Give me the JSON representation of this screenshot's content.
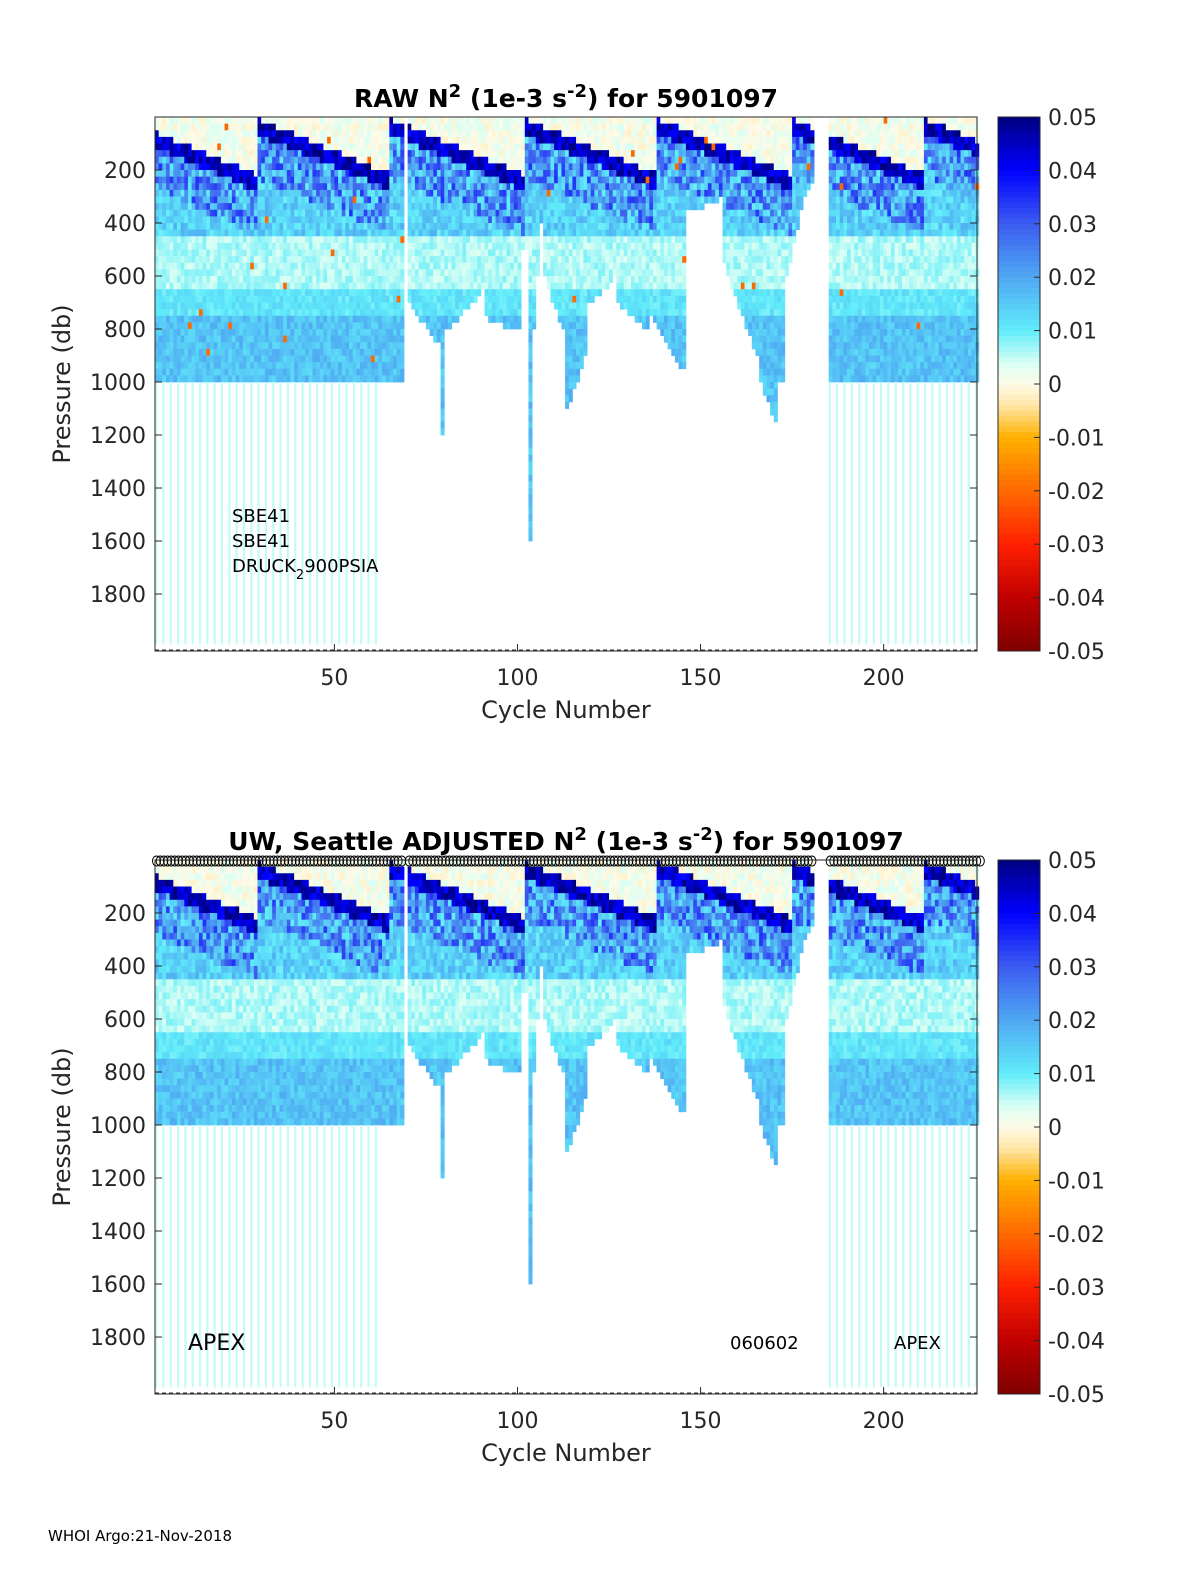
{
  "chart_data": [
    {
      "type": "heatmap",
      "title_parts": [
        "RAW N",
        "2",
        " (1e-3 s",
        "-2",
        ") for 5901097"
      ],
      "xlabel": "Cycle Number",
      "ylabel": "Pressure (db)",
      "xlim": [
        1,
        225.5
      ],
      "ylim": [
        0,
        2015
      ],
      "y_reversed": true,
      "xticks": [
        50,
        100,
        150,
        200
      ],
      "yticks": [
        200,
        400,
        600,
        800,
        1000,
        1200,
        1400,
        1600,
        1800
      ],
      "annotations": [
        "SBE41",
        "SBE41",
        "DRUCK",
        "2",
        "900PSIA"
      ],
      "show_cycle_markers": false
    },
    {
      "type": "heatmap",
      "title_parts": [
        "UW, Seattle  ADJUSTED N",
        "2",
        " (1e-3 s",
        "-2",
        ") for 5901097"
      ],
      "xlabel": "Cycle Number",
      "ylabel": "Pressure (db)",
      "xlim": [
        1,
        225.5
      ],
      "ylim": [
        0,
        2015
      ],
      "y_reversed": true,
      "xticks": [
        50,
        100,
        150,
        200
      ],
      "yticks": [
        200,
        400,
        600,
        800,
        1000,
        1200,
        1400,
        1600,
        1800
      ],
      "annotations": [
        "APEX",
        "060602",
        "APEX"
      ],
      "show_cycle_markers": true
    }
  ],
  "shared": {
    "cycles": [
      1,
      225
    ],
    "missing_cycles": [
      69,
      181,
      182,
      183,
      184
    ],
    "max_pressure_segments": [
      [
        1,
        62,
        1000,
        1000
      ],
      [
        63,
        66,
        1000,
        1000
      ],
      [
        67,
        68,
        1000,
        1000
      ],
      [
        70,
        78,
        700,
        850
      ],
      [
        79,
        79,
        1200,
        1200
      ],
      [
        80,
        90,
        800,
        650
      ],
      [
        91,
        100,
        750,
        800
      ],
      [
        101,
        102,
        500,
        500
      ],
      [
        103,
        103,
        1600,
        1600
      ],
      [
        104,
        106,
        800,
        400
      ],
      [
        107,
        112,
        600,
        800
      ],
      [
        113,
        118,
        1100,
        900
      ],
      [
        119,
        126,
        700,
        600
      ],
      [
        127,
        135,
        700,
        800
      ],
      [
        136,
        145,
        750,
        950
      ],
      [
        146,
        155,
        350,
        300
      ],
      [
        156,
        165,
        550,
        900
      ],
      [
        166,
        170,
        1000,
        1150
      ],
      [
        171,
        172,
        1000,
        1000
      ],
      [
        173,
        177,
        600,
        350
      ],
      [
        178,
        180,
        300,
        250
      ],
      [
        185,
        225,
        1000,
        1000
      ]
    ],
    "deep_profile_cycles": [
      [
        1,
        62
      ],
      [
        185,
        225
      ]
    ],
    "deep_profile_max_pressure": 1990,
    "clim": [
      -0.05,
      0.05
    ],
    "colorbar_ticks": [
      "0.05",
      "0.04",
      "0.03",
      "0.02",
      "0.01",
      "0",
      "-0.01",
      "-0.02",
      "-0.03",
      "-0.04",
      "-0.05"
    ],
    "colormap": [
      [
        -0.05,
        "#7f0000"
      ],
      [
        -0.04,
        "#c00000"
      ],
      [
        -0.03,
        "#ff2000"
      ],
      [
        -0.02,
        "#ff6a00"
      ],
      [
        -0.01,
        "#ffb000"
      ],
      [
        -0.004,
        "#ffe6a8"
      ],
      [
        0,
        "#fffbe8"
      ],
      [
        0.004,
        "#d8fff4"
      ],
      [
        0.01,
        "#60ecfa"
      ],
      [
        0.02,
        "#4fa8f2"
      ],
      [
        0.03,
        "#3c5cf0"
      ],
      [
        0.04,
        "#0000ff"
      ],
      [
        0.05,
        "#00007f"
      ]
    ]
  },
  "footer": "WHOI Argo:21-Nov-2018"
}
